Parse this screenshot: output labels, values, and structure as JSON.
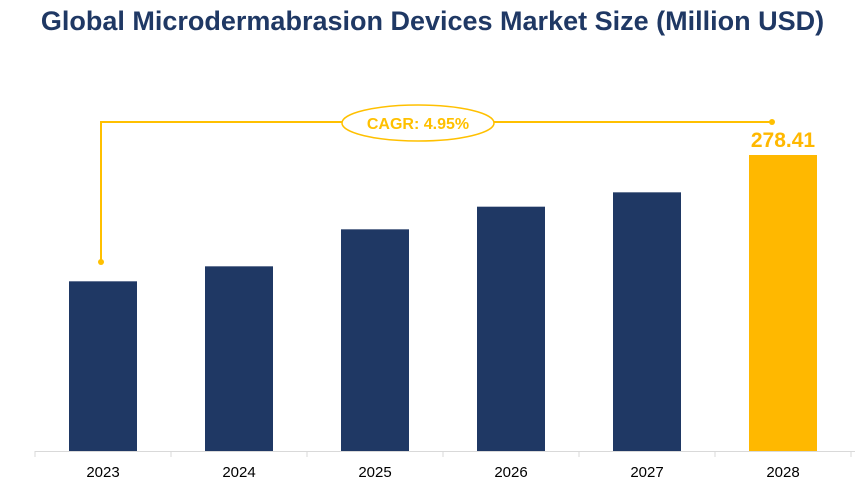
{
  "chart_data": {
    "type": "bar",
    "title": "Global Microdermabrasion Devices Market Size (Million USD)",
    "categories": [
      "2023",
      "2024",
      "2025",
      "2026",
      "2027",
      "2028"
    ],
    "values": [
      159.6,
      173.7,
      208.5,
      229.8,
      243.3,
      278.41
    ],
    "data_labels": {
      "2028": "278.41"
    },
    "annotation": "CAGR: 4.95%",
    "xlabel": "",
    "ylabel": "",
    "ylim": [
      0,
      278.41
    ],
    "grid": false,
    "legend": "none",
    "colors": {
      "bar": "#1f3864",
      "highlight": "#ffb800",
      "title": "#1f3864"
    }
  }
}
